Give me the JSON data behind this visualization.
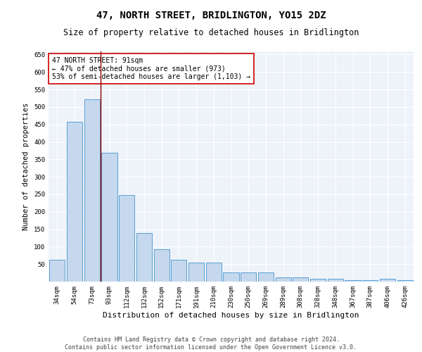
{
  "title": "47, NORTH STREET, BRIDLINGTON, YO15 2DZ",
  "subtitle": "Size of property relative to detached houses in Bridlington",
  "xlabel": "Distribution of detached houses by size in Bridlington",
  "ylabel": "Number of detached properties",
  "bar_color": "#c5d8ed",
  "bar_edge_color": "#5a9fd4",
  "bg_color": "#eef3fa",
  "categories": [
    "34sqm",
    "54sqm",
    "73sqm",
    "93sqm",
    "112sqm",
    "132sqm",
    "152sqm",
    "171sqm",
    "191sqm",
    "210sqm",
    "230sqm",
    "250sqm",
    "269sqm",
    "289sqm",
    "308sqm",
    "328sqm",
    "348sqm",
    "367sqm",
    "387sqm",
    "406sqm",
    "426sqm"
  ],
  "values": [
    63,
    457,
    521,
    369,
    248,
    140,
    92,
    62,
    55,
    55,
    27,
    26,
    27,
    12,
    12,
    8,
    8,
    5,
    5,
    8,
    5
  ],
  "vline_x_idx": 3,
  "vline_color": "#8b0000",
  "annotation_text": "47 NORTH STREET: 91sqm\n← 47% of detached houses are smaller (973)\n53% of semi-detached houses are larger (1,103) →",
  "annotation_box_color": "#ffffff",
  "annotation_box_edge_color": "#cc0000",
  "ylim": [
    0,
    660
  ],
  "yticks": [
    0,
    50,
    100,
    150,
    200,
    250,
    300,
    350,
    400,
    450,
    500,
    550,
    600,
    650
  ],
  "footer": "Contains HM Land Registry data © Crown copyright and database right 2024.\nContains public sector information licensed under the Open Government Licence v3.0.",
  "title_fontsize": 10,
  "subtitle_fontsize": 8.5,
  "xlabel_fontsize": 8,
  "ylabel_fontsize": 7.5,
  "tick_fontsize": 6.5,
  "footer_fontsize": 6,
  "annotation_fontsize": 7
}
